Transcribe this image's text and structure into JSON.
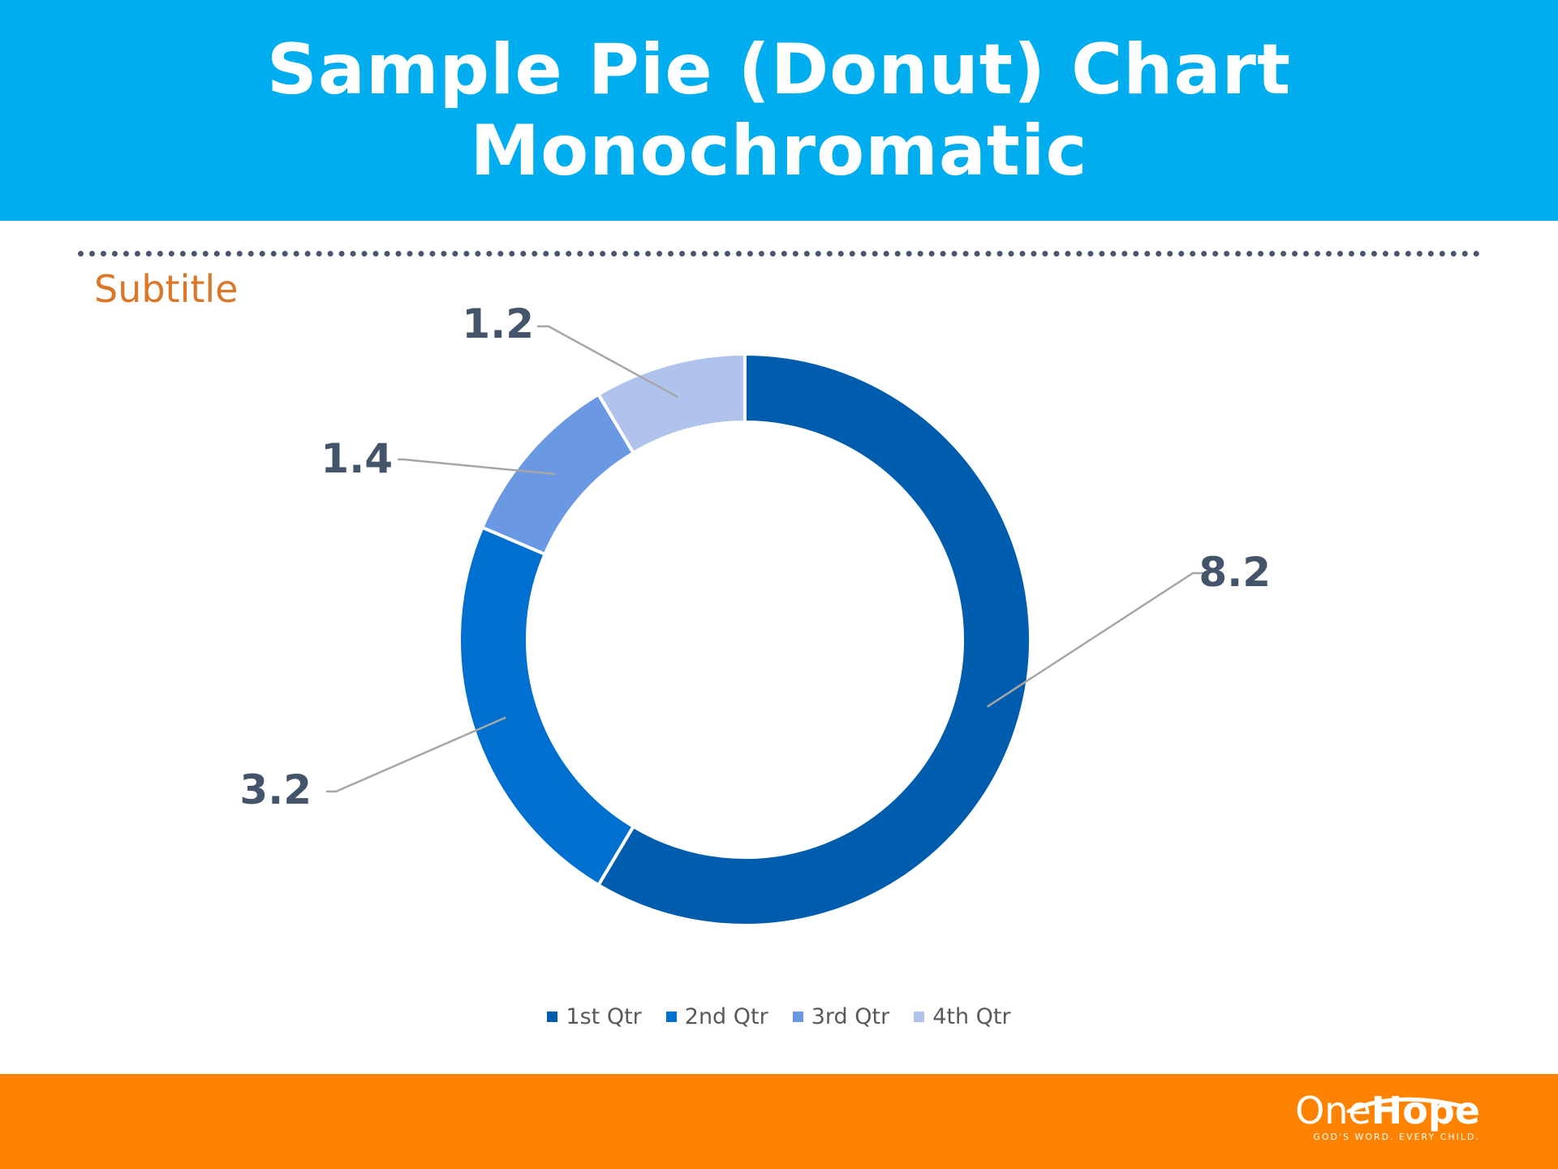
{
  "header": {
    "title_line1": "Sample Pie (Donut) Chart",
    "title_line2": "Monochromatic"
  },
  "subtitle": "Subtitle",
  "colors": {
    "header_bg": "#00aeef",
    "footer_bg": "#ff8200",
    "subtitle": "#d9782b",
    "slice_1": "#005cad",
    "slice_2": "#0070d0",
    "slice_3": "#6a98e2",
    "slice_4": "#b0c3ec"
  },
  "chart_data": {
    "type": "pie",
    "variant": "donut",
    "categories": [
      "1st Qtr",
      "2nd Qtr",
      "3rd Qtr",
      "4th Qtr"
    ],
    "values": [
      8.2,
      3.2,
      1.4,
      1.2
    ],
    "data_labels": [
      "8.2",
      "3.2",
      "1.4",
      "1.2"
    ],
    "legend_position": "bottom"
  },
  "footer": {
    "logo_one": "One",
    "logo_hope": "Hope",
    "logo_tagline": "GOD'S WORD. EVERY CHILD."
  }
}
